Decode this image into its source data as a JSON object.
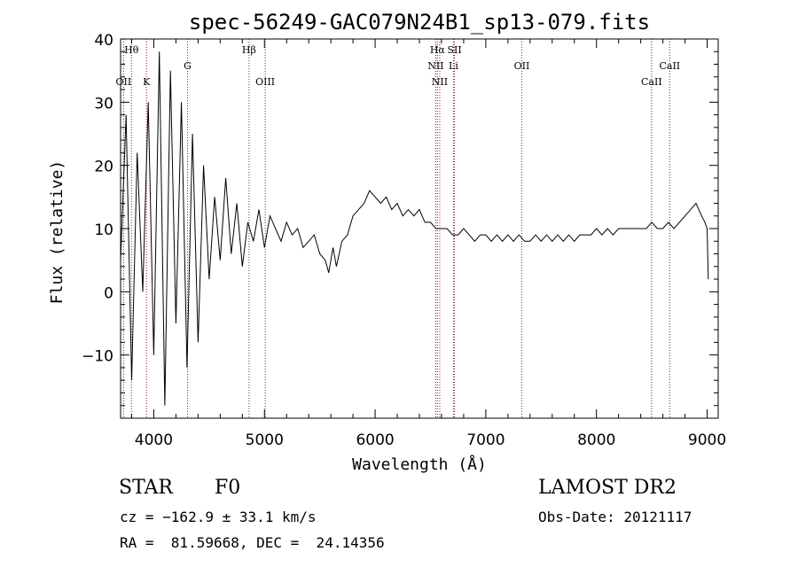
{
  "chart_data": {
    "type": "line",
    "title": "spec-56249-GAC079N24B1_sp13-079.fits",
    "xlabel": "Wavelength (Å)",
    "ylabel": "Flux (relative)",
    "xlim": [
      3700,
      9100
    ],
    "ylim": [
      -20,
      40
    ],
    "x_ticks": [
      4000,
      5000,
      6000,
      7000,
      8000,
      9000
    ],
    "y_ticks": [
      -10,
      0,
      10,
      20,
      30,
      40
    ],
    "grid": false,
    "line_color": "#000000",
    "marker_color": "#8b1a1a",
    "series": [
      {
        "x": [
          3700,
          3750,
          3800,
          3850,
          3900,
          3950,
          4000,
          4050,
          4100,
          4150,
          4200,
          4250,
          4300,
          4350,
          4400,
          4450,
          4500,
          4550,
          4600,
          4650,
          4700,
          4750,
          4800,
          4850,
          4900,
          4950,
          5000,
          5050,
          5100,
          5150,
          5200,
          5250,
          5300,
          5350,
          5400,
          5450,
          5500,
          5550,
          5580,
          5620,
          5650,
          5700,
          5750,
          5800,
          5850,
          5900,
          5950,
          6000,
          6050,
          6100,
          6150,
          6200,
          6250,
          6300,
          6350,
          6400,
          6450,
          6500,
          6550,
          6600,
          6650,
          6700,
          6750,
          6800,
          6850,
          6900,
          6950,
          7000,
          7050,
          7100,
          7150,
          7200,
          7250,
          7300,
          7350,
          7400,
          7450,
          7500,
          7550,
          7600,
          7650,
          7700,
          7750,
          7800,
          7850,
          7900,
          7950,
          8000,
          8050,
          8100,
          8150,
          8200,
          8250,
          8300,
          8350,
          8400,
          8450,
          8500,
          8550,
          8600,
          8650,
          8700,
          8750,
          8800,
          8850,
          8900,
          8950,
          8980,
          9000,
          9010
        ],
        "y": [
          5,
          28,
          -14,
          22,
          0,
          30,
          -10,
          38,
          -18,
          35,
          -5,
          30,
          -12,
          25,
          -8,
          20,
          2,
          15,
          5,
          18,
          6,
          14,
          4,
          11,
          8,
          13,
          7,
          12,
          10,
          8,
          11,
          9,
          10,
          7,
          8,
          9,
          6,
          5,
          3,
          7,
          4,
          8,
          9,
          12,
          13,
          14,
          16,
          15,
          14,
          15,
          13,
          14,
          12,
          13,
          12,
          13,
          11,
          11,
          10,
          10,
          10,
          9,
          9,
          10,
          9,
          8,
          9,
          9,
          8,
          9,
          8,
          9,
          8,
          9,
          8,
          8,
          9,
          8,
          9,
          8,
          9,
          8,
          9,
          8,
          9,
          9,
          9,
          10,
          9,
          10,
          9,
          10,
          10,
          10,
          10,
          10,
          10,
          11,
          10,
          10,
          11,
          10,
          11,
          12,
          13,
          14,
          12,
          11,
          10,
          2
        ]
      }
    ],
    "lines": [
      {
        "label": "OII",
        "x": 3727,
        "row": 2
      },
      {
        "label": "Hθ",
        "x": 3798,
        "row": 0
      },
      {
        "label": "K",
        "x": 3934,
        "row": 2
      },
      {
        "label": "G",
        "x": 4305,
        "row": 1
      },
      {
        "label": "Hβ",
        "x": 4861,
        "row": 0
      },
      {
        "label": "OIII",
        "x": 5007,
        "row": 2
      },
      {
        "label": "Hα",
        "x": 6563,
        "row": 0
      },
      {
        "label": "NII",
        "x": 6548,
        "row": 1
      },
      {
        "label": "NII",
        "x": 6584,
        "row": 2
      },
      {
        "label": "SII",
        "x": 6717,
        "row": 0
      },
      {
        "label": "Li",
        "x": 6708,
        "row": 1
      },
      {
        "label": "OII",
        "x": 7325,
        "row": 1
      },
      {
        "label": "CaII",
        "x": 8498,
        "row": 2
      },
      {
        "label": "CaII",
        "x": 8662,
        "row": 1
      }
    ]
  },
  "info": {
    "class": "STAR",
    "subclass": "F0",
    "survey": "LAMOST DR2",
    "redshift_line": "cz = −162.9 ± 33.1 km/s",
    "obs_date": "Obs-Date: 20121117",
    "coords": "RA =  81.59668, DEC =  24.14356"
  }
}
